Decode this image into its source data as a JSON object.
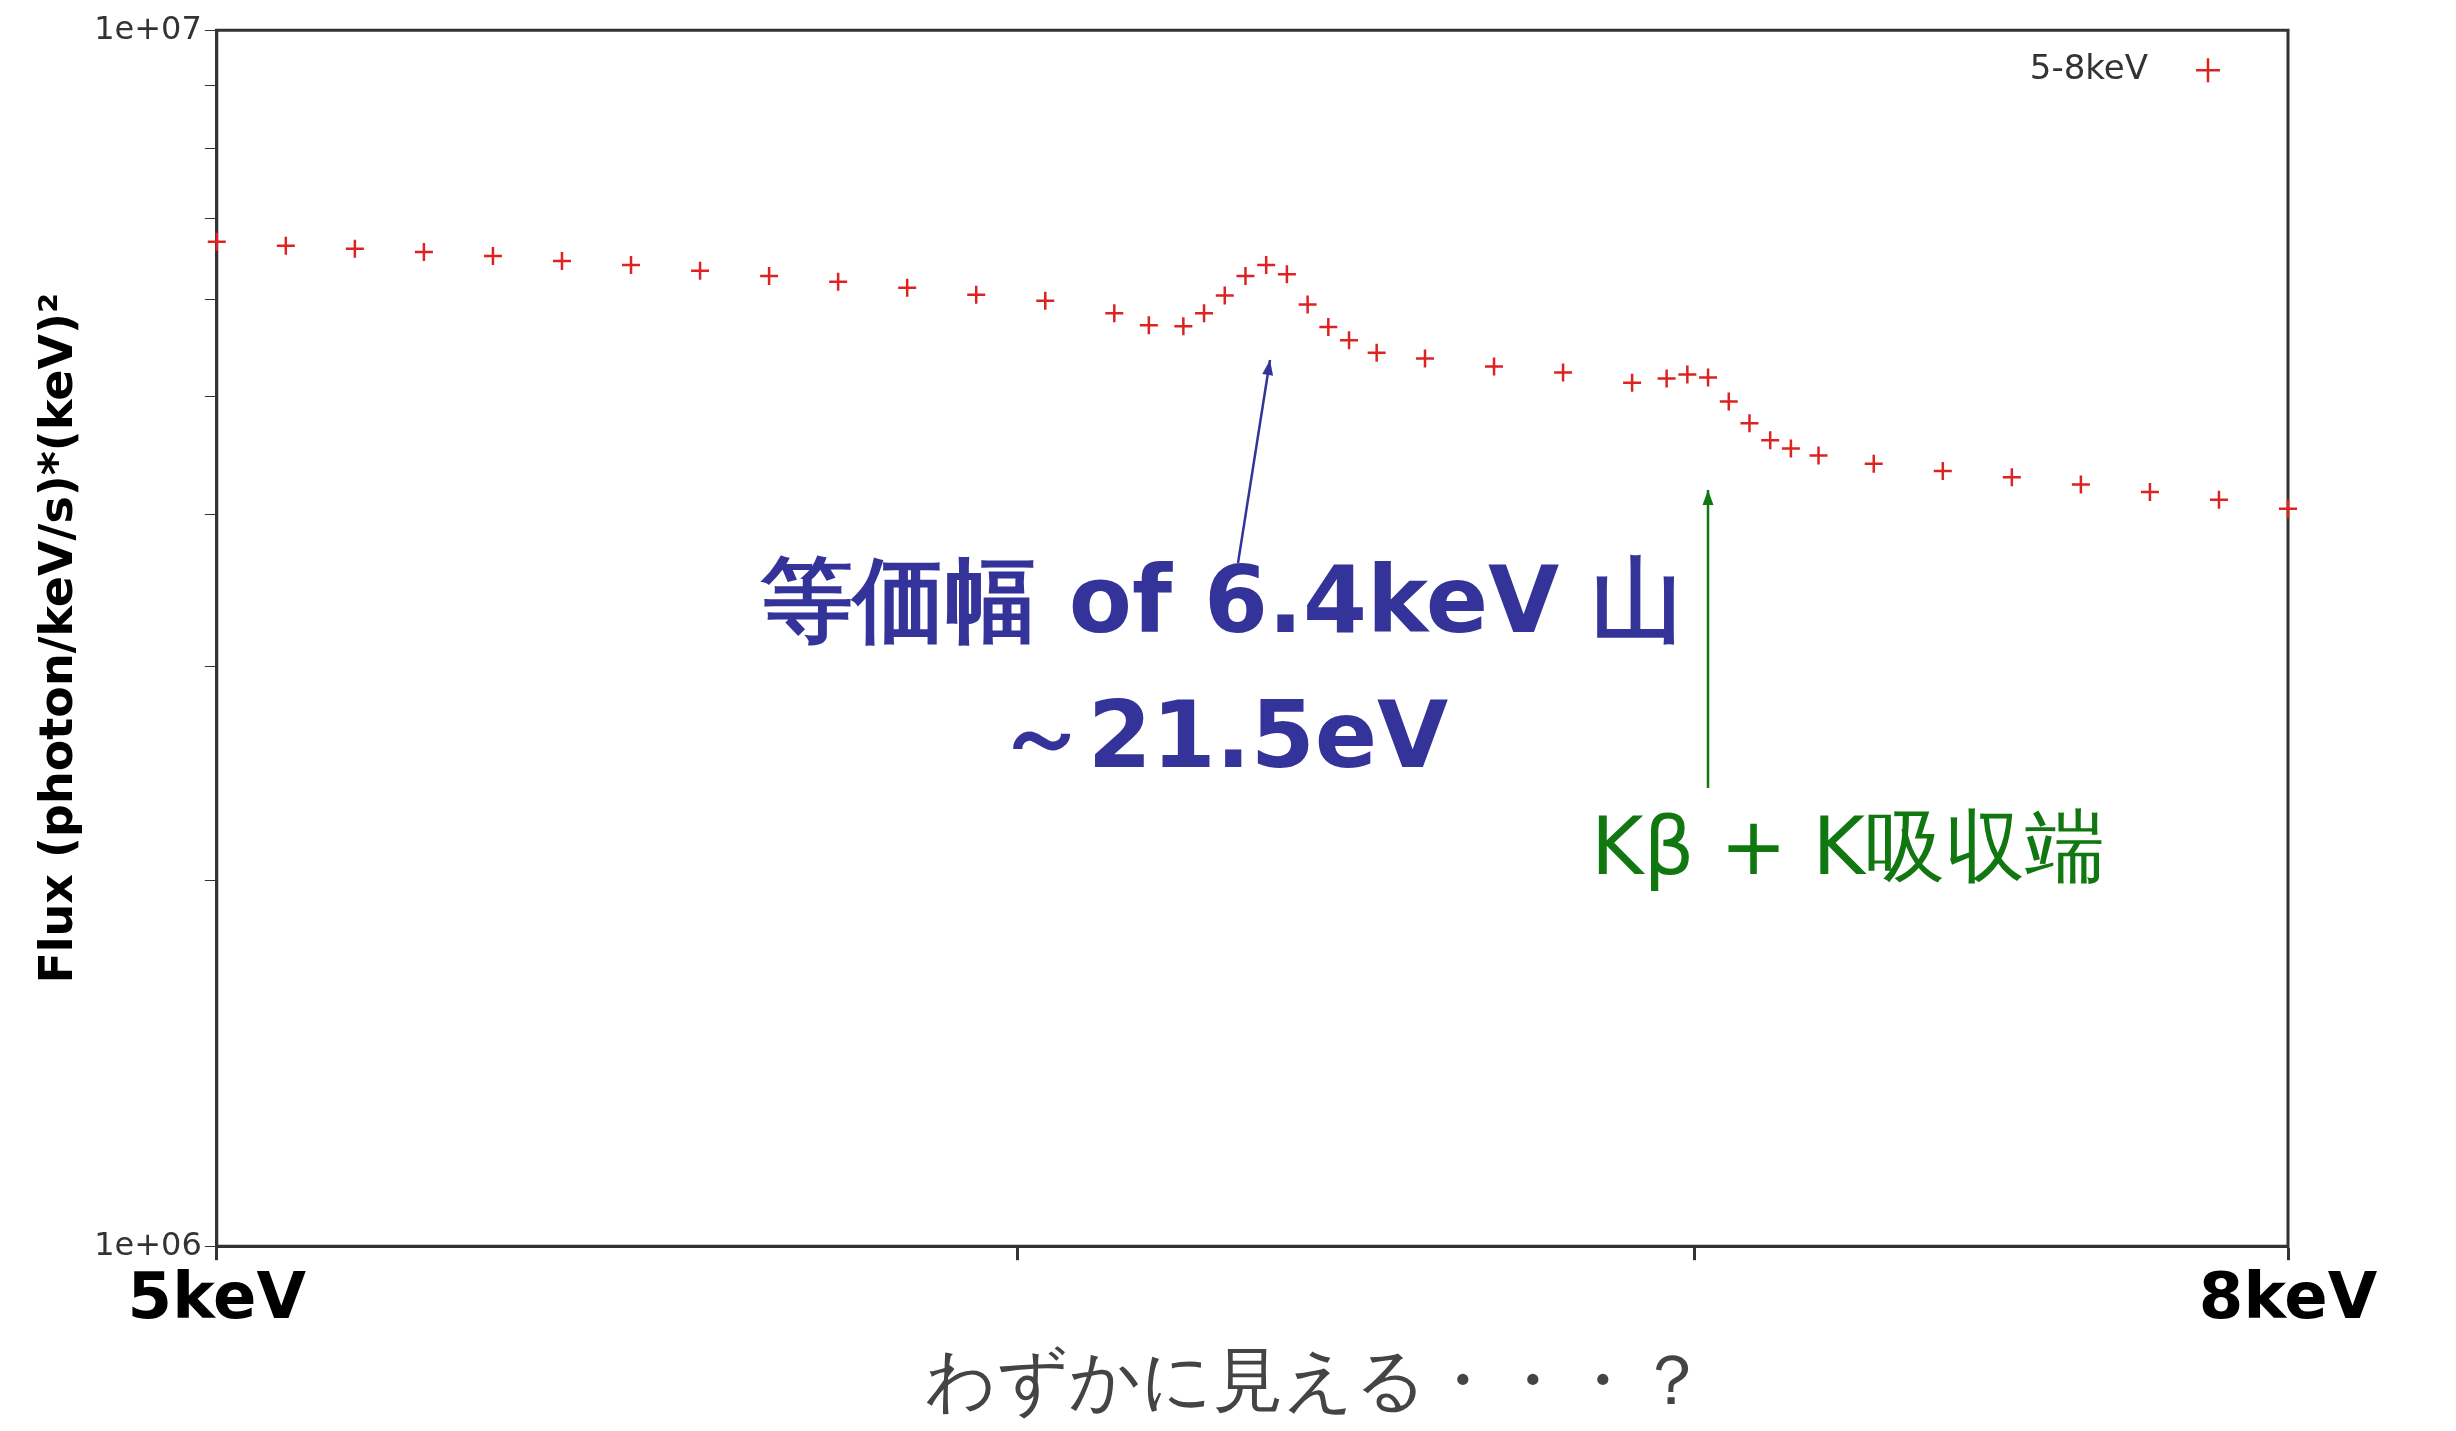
{
  "chart_data": {
    "type": "scatter",
    "ylabel": "Flux (photon/keV/s)*(keV)²",
    "xlim": [
      5,
      8
    ],
    "xticks": [
      {
        "value": 5,
        "label": "5keV"
      },
      {
        "value": 6.16,
        "label": null
      },
      {
        "value": 7.14,
        "label": null
      },
      {
        "value": 8,
        "label": "8keV"
      }
    ],
    "ylim": [
      1000000,
      10000000
    ],
    "yticks": [
      {
        "value": 1000000,
        "label": "1e+06"
      },
      {
        "value": 2000000,
        "label": null
      },
      {
        "value": 3000000,
        "label": null
      },
      {
        "value": 4000000,
        "label": null
      },
      {
        "value": 5000000,
        "label": null
      },
      {
        "value": 6000000,
        "label": null
      },
      {
        "value": 7000000,
        "label": null
      },
      {
        "value": 8000000,
        "label": null
      },
      {
        "value": 9000000,
        "label": null
      },
      {
        "value": 10000000,
        "label": "1e+07"
      }
    ],
    "log": "y",
    "grid": false,
    "legend": "top right",
    "marker": "cross",
    "x": [
      5.0,
      5.1,
      5.2,
      5.3,
      5.4,
      5.5,
      5.6,
      5.7,
      5.8,
      5.9,
      6.0,
      6.1,
      6.2,
      6.3,
      6.35,
      6.4,
      6.43,
      6.46,
      6.49,
      6.52,
      6.55,
      6.58,
      6.61,
      6.64,
      6.68,
      6.75,
      6.85,
      6.95,
      7.05,
      7.1,
      7.13,
      7.16,
      7.19,
      7.22,
      7.25,
      7.28,
      7.32,
      7.4,
      7.5,
      7.6,
      7.7,
      7.8,
      7.9,
      8.0
    ],
    "series": [
      {
        "name": "5-8keV",
        "color": "#dd2222",
        "values": [
          6700000,
          6650000,
          6610000,
          6570000,
          6520000,
          6460000,
          6410000,
          6340000,
          6280000,
          6210000,
          6140000,
          6060000,
          5990000,
          5850000,
          5720000,
          5710000,
          5850000,
          6050000,
          6280000,
          6410000,
          6300000,
          5950000,
          5700000,
          5560000,
          5430000,
          5370000,
          5290000,
          5230000,
          5130000,
          5170000,
          5210000,
          5180000,
          4950000,
          4750000,
          4600000,
          4530000,
          4470000,
          4400000,
          4340000,
          4290000,
          4230000,
          4170000,
          4110000,
          4040000
        ]
      }
    ],
    "annotations": [
      "等価幅 of 6.4keV 山",
      "～21.5eV",
      "Kβ + K吸収端",
      "わずかに見える・・・？"
    ]
  }
}
